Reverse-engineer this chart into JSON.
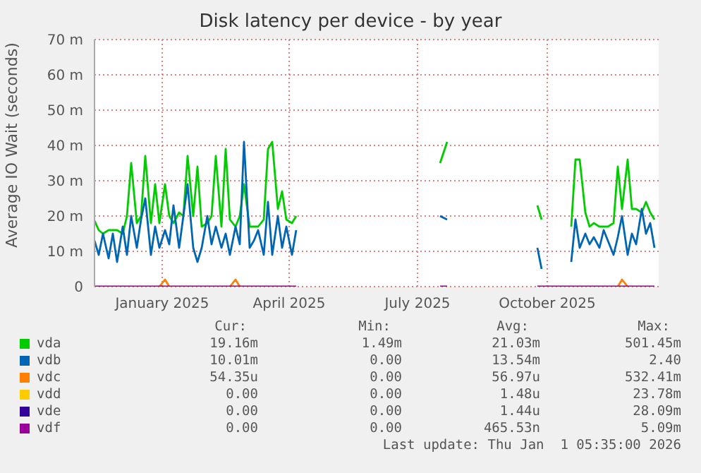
{
  "chart_data": {
    "type": "line",
    "title": "Disk latency per device - by year",
    "ylabel": "Average IO Wait (seconds)",
    "x": [
      "2024-11-29",
      "2024-12-02",
      "2024-12-05",
      "2024-12-09",
      "2024-12-12",
      "2024-12-15",
      "2024-12-19",
      "2024-12-22",
      "2024-12-25",
      "2024-12-29",
      "2025-01-01",
      "2025-01-04",
      "2025-01-08",
      "2025-01-11",
      "2025-01-14",
      "2025-01-18",
      "2025-01-21",
      "2025-01-24",
      "2025-01-28",
      "2025-01-31",
      "2025-02-03",
      "2025-02-07",
      "2025-02-10",
      "2025-02-13",
      "2025-02-17",
      "2025-02-20",
      "2025-02-23",
      "2025-02-27",
      "2025-03-02",
      "2025-03-05",
      "2025-03-09",
      "2025-03-12",
      "2025-03-15",
      "2025-03-19",
      "2025-03-22",
      "2025-03-25",
      "2025-03-29",
      "2025-04-01",
      "2025-04-04",
      "2025-04-08",
      "2025-04-11",
      "2025-04-14",
      "2025-04-18",
      "2025-04-21",
      "2025-06-01",
      "2025-08-01",
      "2025-08-06",
      "2025-09-01",
      "2025-10-09",
      "2025-10-12",
      "2025-10-20",
      "2025-11-02",
      "2025-11-05",
      "2025-11-08",
      "2025-11-12",
      "2025-11-15",
      "2025-11-18",
      "2025-11-22",
      "2025-11-25",
      "2025-11-28",
      "2025-12-02",
      "2025-12-05",
      "2025-12-08",
      "2025-12-12",
      "2025-12-15",
      "2025-12-18",
      "2025-12-22",
      "2025-12-25",
      "2025-12-28",
      "2025-12-31"
    ],
    "series": [
      {
        "name": "vda",
        "color": "#00cc00",
        "values": [
          18.7,
          16,
          15,
          16,
          16,
          16,
          15,
          20,
          35,
          18,
          20,
          37,
          18,
          29,
          18,
          29,
          20,
          18,
          21,
          20,
          37,
          20,
          34,
          17,
          18,
          20,
          37,
          17,
          39,
          19,
          17,
          20,
          29,
          17,
          17,
          17,
          19,
          39,
          41,
          22,
          27,
          19,
          18,
          20,
          null,
          35,
          41,
          null,
          23,
          19,
          null,
          17,
          36,
          36,
          21,
          17,
          18,
          17,
          17,
          17,
          18,
          34,
          22,
          36,
          22,
          22,
          21,
          24,
          21,
          19
        ]
      },
      {
        "name": "vdb",
        "color": "#0066b3",
        "values": [
          13,
          9,
          15,
          8,
          15,
          7,
          17,
          9,
          20,
          11,
          19,
          25,
          9,
          17,
          11,
          16,
          12,
          23,
          11,
          20,
          29,
          11,
          7,
          11,
          20,
          12,
          17,
          11,
          15,
          9,
          17,
          12,
          41,
          11,
          13,
          16,
          9,
          24,
          9,
          20,
          11,
          17,
          9,
          16,
          null,
          20,
          19,
          null,
          11,
          5,
          null,
          7,
          19,
          11,
          15,
          12,
          14,
          11,
          16,
          13,
          9,
          14,
          20,
          9,
          15,
          12,
          22,
          15,
          18,
          11
        ]
      },
      {
        "name": "vdc",
        "color": "#ff8000",
        "values": [
          null,
          null,
          null,
          null,
          null,
          null,
          null,
          null,
          null,
          null,
          null,
          null,
          null,
          null,
          0,
          2,
          0,
          null,
          null,
          null,
          null,
          null,
          null,
          null,
          null,
          null,
          null,
          null,
          null,
          0,
          2,
          0,
          null,
          null,
          null,
          null,
          null,
          null,
          null,
          null,
          null,
          null,
          null,
          null,
          null,
          null,
          null,
          null,
          null,
          null,
          null,
          null,
          null,
          null,
          null,
          null,
          null,
          null,
          null,
          null,
          null,
          0,
          2,
          0,
          null,
          null,
          null,
          null,
          null,
          null
        ]
      },
      {
        "name": "vdd",
        "color": "#ffcc00",
        "values": [
          null,
          null,
          null,
          null,
          null,
          null,
          null,
          null,
          null,
          null,
          null,
          null,
          null,
          null,
          null,
          null,
          null,
          null,
          null,
          null,
          null,
          null,
          null,
          null,
          null,
          null,
          null,
          null,
          null,
          null,
          null,
          null,
          null,
          null,
          null,
          null,
          null,
          null,
          null,
          null,
          null,
          null,
          null,
          null,
          null,
          null,
          null,
          null,
          null,
          null,
          null,
          null,
          null,
          null,
          null,
          null,
          null,
          null,
          null,
          null,
          null,
          null,
          null,
          null,
          null,
          null,
          null,
          null,
          null,
          null
        ]
      },
      {
        "name": "vde",
        "color": "#330099",
        "values": [
          null,
          null,
          null,
          null,
          null,
          null,
          null,
          null,
          null,
          null,
          null,
          null,
          null,
          null,
          null,
          null,
          null,
          null,
          null,
          null,
          null,
          null,
          null,
          null,
          null,
          null,
          null,
          null,
          null,
          null,
          null,
          null,
          null,
          null,
          null,
          null,
          null,
          null,
          null,
          null,
          null,
          null,
          null,
          null,
          null,
          null,
          null,
          null,
          null,
          null,
          null,
          null,
          null,
          null,
          null,
          null,
          null,
          null,
          null,
          null,
          null,
          null,
          null,
          null,
          null,
          null,
          null,
          null,
          null,
          null
        ]
      },
      {
        "name": "vdf",
        "color": "#990099",
        "values": [
          0,
          0,
          0,
          0,
          0,
          0,
          0,
          0,
          0,
          0,
          0,
          0,
          0,
          0,
          0,
          0,
          0,
          0,
          0,
          0,
          0,
          0,
          0,
          0,
          0,
          0,
          0,
          0,
          0,
          0,
          0,
          0,
          0,
          0,
          0,
          0,
          0,
          0,
          0,
          0,
          0,
          0,
          0,
          0,
          null,
          0,
          0,
          null,
          0,
          0,
          0,
          0,
          0,
          0,
          0,
          0,
          0,
          0,
          0,
          0,
          0,
          0,
          0,
          0,
          0,
          0,
          0,
          0,
          0,
          0
        ]
      }
    ],
    "xlim": [
      "2024-11-29",
      "2026-01-03"
    ],
    "xticks": [
      {
        "value": "2025-01-16",
        "label": "January 2025"
      },
      {
        "value": "2025-04-16",
        "label": "April 2025"
      },
      {
        "value": "2025-07-16",
        "label": "July 2025"
      },
      {
        "value": "2025-10-16",
        "label": "October 2025"
      }
    ],
    "ylim": [
      0,
      70
    ],
    "yticks": [
      {
        "value": 0,
        "label": "0"
      },
      {
        "value": 10,
        "label": "10 m"
      },
      {
        "value": 20,
        "label": "20 m"
      },
      {
        "value": 30,
        "label": "30 m"
      },
      {
        "value": 40,
        "label": "40 m"
      },
      {
        "value": 50,
        "label": "50 m"
      },
      {
        "value": 60,
        "label": "60 m"
      },
      {
        "value": 70,
        "label": "70 m"
      }
    ],
    "grid": true,
    "legend": "bottom",
    "marker": "none",
    "line_style": "solid",
    "annotations": [
      "Cur:",
      "Min:",
      "Avg:",
      "Max:",
      "19.16m",
      "1.49m",
      "21.03m",
      "501.45m",
      "10.01m",
      "0.00",
      "13.54m",
      "2.40",
      "54.35u",
      "0.00",
      "56.97u",
      "532.41m",
      "0.00",
      "0.00",
      "1.48u",
      "23.78m",
      "0.00",
      "0.00",
      "1.44u",
      "28.09m",
      "0.00",
      "0.00",
      "465.53n",
      "5.09m",
      "Last update: Thu Jan  1 05:35:00 2026"
    ]
  }
}
